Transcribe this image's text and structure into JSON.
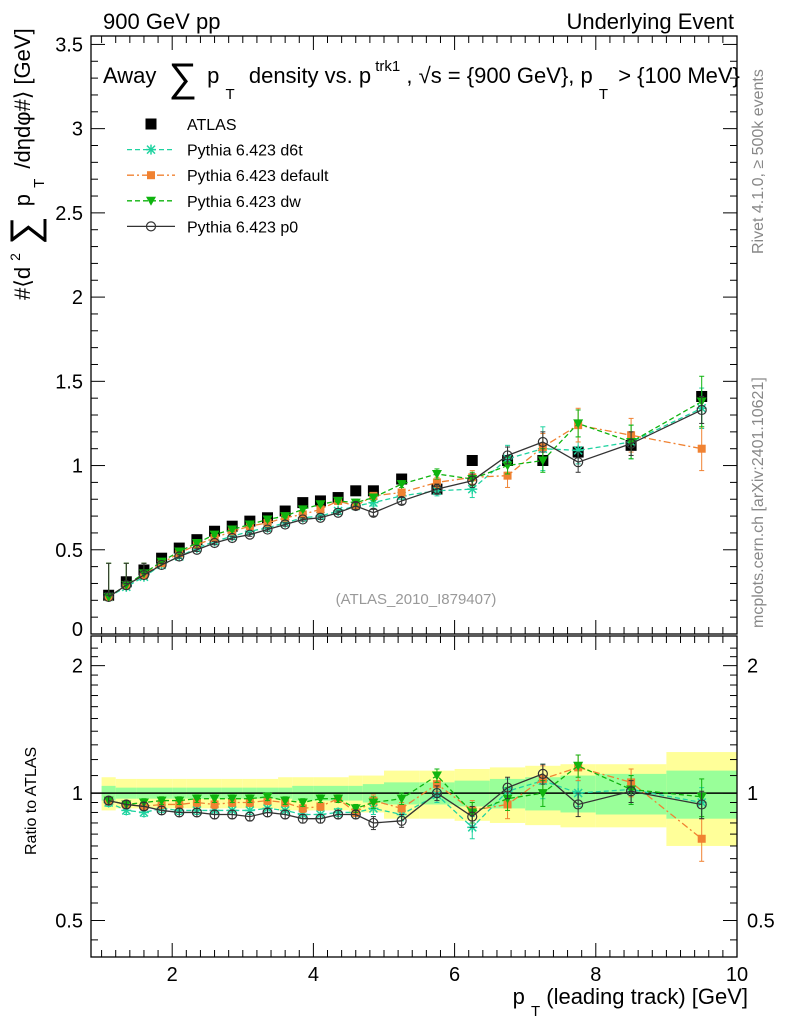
{
  "header": {
    "left": "900 GeV pp",
    "right": "Underlying Event"
  },
  "side": {
    "rivet": "Rivet 4.1.0, ≥ 500k events",
    "mcplots": "mcplots.cern.ch [arXiv:2401.10621]"
  },
  "colors": {
    "atlas": "#000000",
    "d6t": "#1fd3a0",
    "default": "#f08232",
    "dw": "#0fb40f",
    "p0": "#333333",
    "band_outer": "#ffff99",
    "band_inner": "#99ff99"
  },
  "chart_data": [
    {
      "type": "line",
      "title": "Away ∑ pT density vs. pT trk1, √s = {900 GeV}, pT > {100 MeV}",
      "title_parts": {
        "away": "Away",
        "sum": "∑",
        "p": "p",
        "T": "T",
        "density": "density vs. p",
        "trk1": "trk1",
        "sqrt": ", √s = {900 GeV}, p",
        "T2": "T",
        "cut": " > {100 MeV}"
      },
      "ylabel": "#⟨d² ∑ pT /dηdφ#⟩ [GeV]",
      "ylabel_parts": {
        "pre": "#⟨d",
        "sup": "2",
        "sum": "∑",
        "p": "p",
        "T": "T",
        "post": "/dηdφ#⟩ [GeV]"
      },
      "xlim": [
        0.85,
        10.0
      ],
      "ylim": [
        0,
        3.55
      ],
      "yticks": [
        0.5,
        1,
        1.5,
        2,
        2.5,
        3,
        3.5
      ],
      "ytick_labels": [
        "0.5",
        "1",
        "1.5",
        "2",
        "2.5",
        "3",
        "3.5"
      ],
      "y_zero_label": "0",
      "watermark": "(ATLAS_2010_I879407)",
      "legend": [
        {
          "key": "atlas",
          "label": "ATLAS"
        },
        {
          "key": "d6t",
          "label": "Pythia 6.423 d6t"
        },
        {
          "key": "default",
          "label": "Pythia 6.423 default"
        },
        {
          "key": "dw",
          "label": "Pythia 6.423 dw"
        },
        {
          "key": "p0",
          "label": "Pythia 6.423 p0"
        }
      ],
      "x": [
        1.1,
        1.35,
        1.6,
        1.85,
        2.1,
        2.35,
        2.6,
        2.85,
        3.1,
        3.35,
        3.6,
        3.85,
        4.1,
        4.35,
        4.6,
        4.85,
        5.25,
        5.75,
        6.25,
        6.75,
        7.25,
        7.75,
        8.5,
        9.5
      ],
      "series": [
        {
          "key": "atlas",
          "name": "ATLAS",
          "values": [
            0.23,
            0.31,
            0.38,
            0.45,
            0.51,
            0.56,
            0.61,
            0.64,
            0.67,
            0.69,
            0.73,
            0.78,
            0.79,
            0.81,
            0.85,
            0.85,
            0.92,
            0.86,
            1.03,
            1.03,
            1.03,
            1.08,
            1.12,
            1.41
          ]
        },
        {
          "key": "d6t",
          "name": "Pythia 6.423 d6t",
          "values": [
            0.22,
            0.28,
            0.34,
            0.41,
            0.46,
            0.51,
            0.55,
            0.58,
            0.61,
            0.63,
            0.66,
            0.69,
            0.7,
            0.73,
            0.76,
            0.78,
            0.82,
            0.85,
            0.86,
            1.04,
            1.1,
            1.09,
            1.14,
            1.34
          ]
        },
        {
          "key": "default",
          "name": "Pythia 6.423 default",
          "values": [
            0.22,
            0.29,
            0.35,
            0.42,
            0.48,
            0.53,
            0.57,
            0.61,
            0.64,
            0.66,
            0.69,
            0.71,
            0.74,
            0.79,
            0.76,
            0.82,
            0.84,
            0.9,
            0.93,
            0.94,
            1.11,
            1.24,
            1.18,
            1.1
          ]
        },
        {
          "key": "dw",
          "name": "Pythia 6.423 dw",
          "values": [
            0.22,
            0.29,
            0.36,
            0.43,
            0.49,
            0.54,
            0.59,
            0.62,
            0.65,
            0.68,
            0.7,
            0.74,
            0.77,
            0.79,
            0.78,
            0.81,
            0.89,
            0.95,
            0.92,
            1.0,
            1.03,
            1.25,
            1.14,
            1.38
          ]
        },
        {
          "key": "p0",
          "name": "Pythia 6.423 p0",
          "values": [
            0.22,
            0.29,
            0.35,
            0.41,
            0.46,
            0.5,
            0.54,
            0.57,
            0.59,
            0.62,
            0.65,
            0.68,
            0.69,
            0.72,
            0.76,
            0.72,
            0.79,
            0.86,
            0.91,
            1.06,
            1.14,
            1.02,
            1.13,
            1.33
          ]
        }
      ],
      "yerr": {
        "d6t": [
          0.01,
          0.01,
          0.01,
          0.01,
          0.01,
          0.01,
          0.01,
          0.01,
          0.01,
          0.01,
          0.01,
          0.01,
          0.01,
          0.01,
          0.02,
          0.02,
          0.02,
          0.03,
          0.05,
          0.08,
          0.13,
          0.08,
          0.1,
          0.12
        ],
        "default": [
          0.01,
          0.01,
          0.01,
          0.01,
          0.01,
          0.01,
          0.01,
          0.01,
          0.01,
          0.01,
          0.01,
          0.01,
          0.01,
          0.01,
          0.02,
          0.02,
          0.02,
          0.03,
          0.04,
          0.07,
          0.08,
          0.1,
          0.1,
          0.13
        ],
        "dw": [
          0.01,
          0.01,
          0.01,
          0.01,
          0.01,
          0.01,
          0.01,
          0.01,
          0.01,
          0.01,
          0.01,
          0.01,
          0.01,
          0.01,
          0.02,
          0.02,
          0.02,
          0.03,
          0.04,
          0.05,
          0.07,
          0.08,
          0.1,
          0.15
        ],
        "p0": [
          0.01,
          0.01,
          0.01,
          0.01,
          0.01,
          0.01,
          0.01,
          0.01,
          0.01,
          0.01,
          0.01,
          0.01,
          0.01,
          0.01,
          0.02,
          0.02,
          0.02,
          0.03,
          0.04,
          0.05,
          0.06,
          0.06,
          0.07,
          0.08
        ]
      }
    },
    {
      "type": "line",
      "title": "Ratio to ATLAS",
      "ylabel": "Ratio to ATLAS",
      "xlabel": "pT (leading track) [GeV]",
      "xlabel_parts": {
        "p": "p",
        "T": "T",
        "rest": " (leading track) [GeV]"
      },
      "xlim": [
        0.85,
        10.0
      ],
      "xticks": [
        2,
        4,
        6,
        8,
        10
      ],
      "xtick_labels": [
        "2",
        "4",
        "6",
        "8",
        "10"
      ],
      "yrange": [
        0.41,
        2.35
      ],
      "yscale": "log",
      "yticks": [
        0.5,
        1,
        2
      ],
      "ytick_labels": [
        "0.5",
        "1",
        "2"
      ],
      "reference": 1.0,
      "band_edges": [
        1.0,
        1.2,
        1.5,
        1.7,
        2.0,
        2.2,
        2.5,
        2.7,
        3.0,
        3.2,
        3.5,
        3.7,
        4.0,
        4.2,
        4.5,
        4.7,
        5.0,
        5.5,
        6.0,
        6.5,
        7.0,
        7.5,
        8.0,
        9.0,
        10.0
      ],
      "band_outer": [
        0.09,
        0.08,
        0.08,
        0.08,
        0.08,
        0.08,
        0.08,
        0.08,
        0.08,
        0.08,
        0.09,
        0.09,
        0.09,
        0.09,
        0.1,
        0.1,
        0.13,
        0.13,
        0.14,
        0.15,
        0.16,
        0.17,
        0.17,
        0.25
      ],
      "band_inner": [
        0.04,
        0.03,
        0.03,
        0.03,
        0.03,
        0.03,
        0.03,
        0.03,
        0.03,
        0.03,
        0.03,
        0.04,
        0.04,
        0.04,
        0.04,
        0.05,
        0.06,
        0.06,
        0.07,
        0.08,
        0.09,
        0.1,
        0.11,
        0.13
      ],
      "x": [
        1.1,
        1.35,
        1.6,
        1.85,
        2.1,
        2.35,
        2.6,
        2.85,
        3.1,
        3.35,
        3.6,
        3.85,
        4.1,
        4.35,
        4.6,
        4.85,
        5.25,
        5.75,
        6.25,
        6.75,
        7.25,
        7.75,
        8.5,
        9.5
      ],
      "series": [
        {
          "key": "d6t",
          "name": "Pythia 6.423 d6t",
          "values": [
            0.95,
            0.91,
            0.9,
            0.92,
            0.91,
            0.91,
            0.91,
            0.91,
            0.91,
            0.92,
            0.91,
            0.89,
            0.89,
            0.9,
            0.9,
            0.92,
            0.89,
            0.99,
            0.83,
            1.01,
            1.07,
            1.0,
            1.02,
            0.95
          ]
        },
        {
          "key": "default",
          "name": "Pythia 6.423 default",
          "values": [
            0.96,
            0.94,
            0.93,
            0.94,
            0.94,
            0.95,
            0.94,
            0.95,
            0.95,
            0.96,
            0.95,
            0.92,
            0.93,
            0.97,
            0.9,
            0.96,
            0.92,
            1.05,
            0.91,
            0.94,
            1.08,
            1.15,
            1.06,
            0.78
          ]
        },
        {
          "key": "dw",
          "name": "Pythia 6.423 dw",
          "values": [
            0.96,
            0.94,
            0.95,
            0.96,
            0.96,
            0.97,
            0.97,
            0.97,
            0.97,
            0.98,
            0.96,
            0.95,
            0.97,
            0.97,
            0.92,
            0.95,
            0.97,
            1.1,
            0.9,
            0.97,
            1.0,
            1.16,
            1.02,
            0.98
          ]
        },
        {
          "key": "p0",
          "name": "Pythia 6.423 p0",
          "values": [
            0.96,
            0.94,
            0.93,
            0.91,
            0.9,
            0.9,
            0.89,
            0.89,
            0.88,
            0.9,
            0.89,
            0.87,
            0.87,
            0.89,
            0.89,
            0.85,
            0.86,
            1.0,
            0.88,
            1.03,
            1.11,
            0.94,
            1.01,
            0.94
          ]
        }
      ],
      "yerr": {
        "d6t": [
          0.02,
          0.02,
          0.02,
          0.02,
          0.02,
          0.02,
          0.02,
          0.02,
          0.02,
          0.02,
          0.02,
          0.02,
          0.02,
          0.02,
          0.02,
          0.03,
          0.03,
          0.04,
          0.05,
          0.07,
          0.1,
          0.07,
          0.08,
          0.08
        ],
        "default": [
          0.02,
          0.02,
          0.02,
          0.02,
          0.02,
          0.02,
          0.02,
          0.02,
          0.02,
          0.02,
          0.02,
          0.02,
          0.02,
          0.02,
          0.02,
          0.03,
          0.03,
          0.04,
          0.05,
          0.07,
          0.08,
          0.08,
          0.08,
          0.09
        ],
        "dw": [
          0.02,
          0.02,
          0.02,
          0.02,
          0.02,
          0.02,
          0.02,
          0.02,
          0.02,
          0.02,
          0.02,
          0.02,
          0.02,
          0.02,
          0.02,
          0.03,
          0.03,
          0.04,
          0.05,
          0.06,
          0.07,
          0.07,
          0.08,
          0.1
        ],
        "p0": [
          0.02,
          0.02,
          0.02,
          0.02,
          0.02,
          0.02,
          0.02,
          0.02,
          0.02,
          0.02,
          0.02,
          0.02,
          0.02,
          0.02,
          0.02,
          0.03,
          0.03,
          0.04,
          0.05,
          0.06,
          0.06,
          0.06,
          0.06,
          0.07
        ]
      }
    }
  ]
}
